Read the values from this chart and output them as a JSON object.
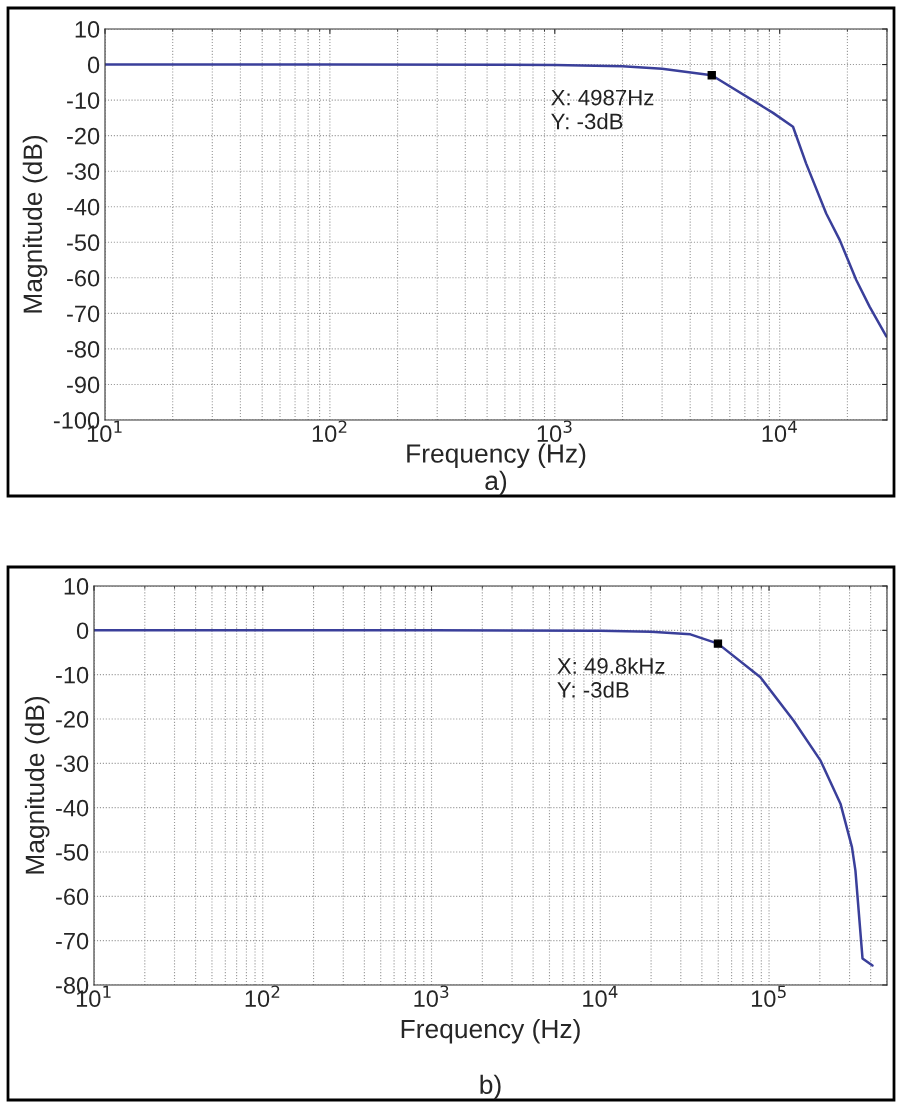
{
  "chart_data": [
    {
      "type": "line",
      "xlabel": "Frequency (Hz)",
      "ylabel": "Magnitude (dB)",
      "log": "x",
      "grid": true,
      "marker": "none",
      "line_style": "solid",
      "xlim": [
        10,
        30000
      ],
      "xticks": [
        {
          "value": 10,
          "label": "10$^{1}$"
        },
        {
          "value": 100,
          "label": "10$^{2}$"
        },
        {
          "value": 1000,
          "label": "10$^{3}$"
        },
        {
          "value": 10000,
          "label": "10$^{4}$"
        }
      ],
      "ylim": [
        -100,
        10
      ],
      "yticks": [
        10,
        0,
        -10,
        -20,
        -30,
        -40,
        -50,
        -60,
        -70,
        -80,
        -90,
        -100
      ],
      "series": [
        {
          "color": "#3a3f9a",
          "x": [
            10,
            100,
            1000,
            2000,
            3000,
            4987,
            9340,
            11460,
            13100,
            16100,
            18500,
            21900,
            25100,
            29800
          ],
          "values": [
            0,
            0,
            -0.1,
            -0.5,
            -1.2,
            -3,
            -13.6,
            -17.5,
            -27.8,
            -41.9,
            -49.4,
            -60.6,
            -68.1,
            -76.5
          ]
        }
      ],
      "annotations": [
        {
          "text": "X: 4987Hz\nY: -3dB",
          "x": 4987,
          "y": -3
        },
        "a)"
      ]
    },
    {
      "type": "line",
      "xlabel": "Frequency (Hz)",
      "ylabel": "Magnitude (dB)",
      "log": "x",
      "grid": true,
      "marker": "none",
      "line_style": "solid",
      "xlim": [
        10,
        500000
      ],
      "xticks": [
        {
          "value": 10,
          "label": "10$^{1}$"
        },
        {
          "value": 100,
          "label": "10$^{2}$"
        },
        {
          "value": 1000,
          "label": "10$^{3}$"
        },
        {
          "value": 10000,
          "label": "10$^{4}$"
        },
        {
          "value": 100000,
          "label": "10$^{5}$"
        }
      ],
      "ylim": [
        -80,
        10
      ],
      "yticks": [
        10,
        0,
        -10,
        -20,
        -30,
        -40,
        -50,
        -60,
        -70,
        -80
      ],
      "series": [
        {
          "color": "#3a3f9a",
          "x": [
            10,
            100,
            1000,
            10000,
            20000,
            34200,
            49800,
            88900,
            140000,
            202000,
            265000,
            310000,
            325000,
            358000,
            410000
          ],
          "values": [
            0,
            0,
            0,
            -0.1,
            -0.3,
            -0.9,
            -3,
            -10.6,
            -20.4,
            -29.4,
            -39.1,
            -48.9,
            -54.2,
            -74,
            -75.6
          ]
        }
      ],
      "annotations": [
        {
          "text": "X: 49.8kHz\nY: -3dB",
          "x": 49800,
          "y": -3
        },
        "b)"
      ]
    }
  ]
}
